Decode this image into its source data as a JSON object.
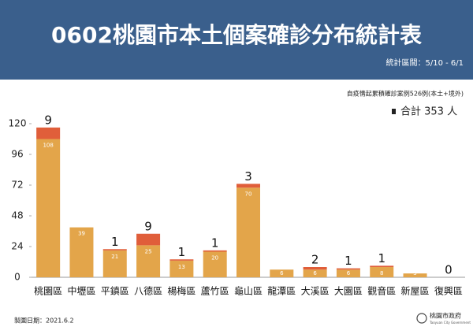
{
  "chart_data": {
    "type": "bar",
    "title": "0602桃園市本土個案確診分布統計表",
    "subtitle": "統計區間：5/10 - 6/1",
    "note": "自疫情起累積確診案例526例(本土+境外)",
    "total": "合計 353 人",
    "footer": "製圖日期：2021.6.2",
    "source": "桃園市政府",
    "source_en": "Taoyuan City Government",
    "stacked": true,
    "categories": [
      "桃園區",
      "中壢區",
      "平鎮區",
      "八德區",
      "楊梅區",
      "蘆竹區",
      "龜山區",
      "龍潭區",
      "大溪區",
      "大園區",
      "觀音區",
      "新屋區",
      "復興區"
    ],
    "series": [
      {
        "color": "#e3a54a",
        "values": [
          108,
          39,
          21,
          25,
          13,
          20,
          70,
          6,
          6,
          6,
          8,
          3,
          null
        ]
      },
      {
        "color": "#e05e3a",
        "values": [
          9,
          null,
          1,
          9,
          1,
          1,
          3,
          null,
          2,
          1,
          1,
          null,
          0
        ]
      }
    ],
    "ylim": [
      0,
      120
    ],
    "yticks": [
      0,
      24,
      48,
      72,
      96,
      120
    ],
    "grid": false
  }
}
